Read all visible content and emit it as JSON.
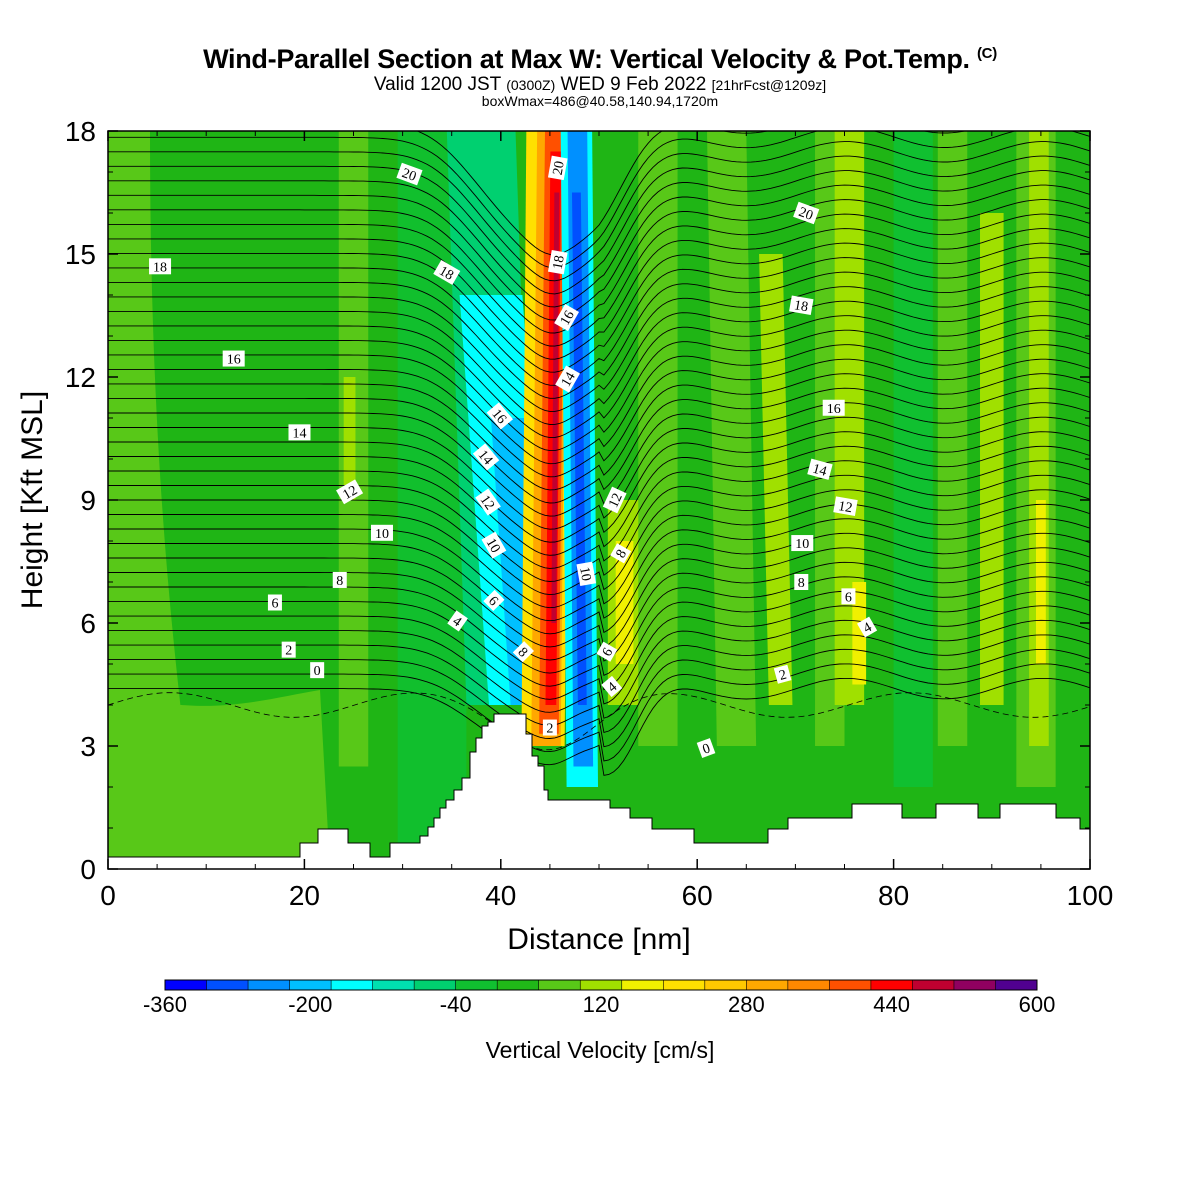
{
  "title": {
    "line1": "Wind-Parallel Section at Max W: Vertical Velocity & Pot.Temp.",
    "copyright": "(C)",
    "line2_a": "Valid 1200 JST",
    "line2_b": "(0300Z)",
    "line2_c": "WED 9 Feb 2022",
    "line2_d": "[21hrFcst@1209z]",
    "line3": "boxWmax=486@40.58,140.94,1720m"
  },
  "chart_data": {
    "type": "heatmap",
    "description_variable": "Vertical Velocity",
    "xlabel": "Distance [nm]",
    "ylabel": "Height [Kft MSL]",
    "xlim": [
      0,
      100
    ],
    "ylim": [
      0,
      18
    ],
    "xticks": [
      0,
      20,
      40,
      60,
      80,
      100
    ],
    "yticks": [
      0,
      3,
      6,
      9,
      12,
      15,
      18
    ],
    "colorbar": {
      "label": "Vertical Velocity [cm/s]",
      "tick_labels": [
        "-360",
        "-200",
        "-40",
        "120",
        "280",
        "440",
        "600"
      ],
      "tick_values": [
        -360,
        -200,
        -40,
        120,
        280,
        440,
        600
      ],
      "colors": [
        "#0000ff",
        "#0050ff",
        "#0090ff",
        "#00c0ff",
        "#00ffff",
        "#00e0b0",
        "#00d070",
        "#10c030",
        "#20b818",
        "#58c818",
        "#a0e000",
        "#f0f000",
        "#ffe000",
        "#ffc800",
        "#ffa800",
        "#ff8800",
        "#ff5000",
        "#ff0000",
        "#c00030",
        "#900060",
        "#500090"
      ]
    },
    "contour_variable": "Pot.Temp.",
    "contour_labels": [
      {
        "text": "18",
        "x": 5.3,
        "y": 14.7,
        "angle": 0
      },
      {
        "text": "16",
        "x": 12.8,
        "y": 12.45,
        "angle": 0
      },
      {
        "text": "14",
        "x": 19.5,
        "y": 10.65,
        "angle": 0
      },
      {
        "text": "12",
        "x": 24.6,
        "y": 9.2,
        "angle": -30
      },
      {
        "text": "10",
        "x": 27.9,
        "y": 8.2,
        "angle": 0
      },
      {
        "text": "8",
        "x": 23.6,
        "y": 7.05,
        "angle": 0
      },
      {
        "text": "6",
        "x": 17.0,
        "y": 6.5,
        "angle": 0
      },
      {
        "text": "2",
        "x": 18.4,
        "y": 5.35,
        "angle": 0
      },
      {
        "text": "0",
        "x": 21.3,
        "y": 4.85,
        "angle": 0
      },
      {
        "text": "20",
        "x": 30.7,
        "y": 16.95,
        "angle": 20
      },
      {
        "text": "18",
        "x": 34.5,
        "y": 14.55,
        "angle": 30
      },
      {
        "text": "16",
        "x": 39.9,
        "y": 11.05,
        "angle": 50
      },
      {
        "text": "14",
        "x": 38.5,
        "y": 10.05,
        "angle": 50
      },
      {
        "text": "12",
        "x": 38.7,
        "y": 8.95,
        "angle": 55
      },
      {
        "text": "10",
        "x": 39.3,
        "y": 7.9,
        "angle": 60
      },
      {
        "text": "6",
        "x": 39.3,
        "y": 6.55,
        "angle": 45
      },
      {
        "text": "4",
        "x": 35.6,
        "y": 6.05,
        "angle": 35
      },
      {
        "text": "8",
        "x": 42.3,
        "y": 5.3,
        "angle": 45
      },
      {
        "text": "2",
        "x": 45.0,
        "y": 3.45,
        "angle": 0
      },
      {
        "text": "20",
        "x": 45.8,
        "y": 17.1,
        "angle": -80
      },
      {
        "text": "18",
        "x": 45.8,
        "y": 14.8,
        "angle": -80
      },
      {
        "text": "16",
        "x": 46.7,
        "y": 13.45,
        "angle": -60
      },
      {
        "text": "14",
        "x": 46.8,
        "y": 11.95,
        "angle": -60
      },
      {
        "text": "12",
        "x": 51.6,
        "y": 9.0,
        "angle": -65
      },
      {
        "text": "10",
        "x": 48.7,
        "y": 7.2,
        "angle": 80
      },
      {
        "text": "8",
        "x": 52.2,
        "y": 7.7,
        "angle": -60
      },
      {
        "text": "6",
        "x": 50.8,
        "y": 5.3,
        "angle": -60
      },
      {
        "text": "4",
        "x": 51.3,
        "y": 4.45,
        "angle": -40
      },
      {
        "text": "0",
        "x": 60.9,
        "y": 2.95,
        "angle": -20
      },
      {
        "text": "20",
        "x": 71.1,
        "y": 16.0,
        "angle": 20
      },
      {
        "text": "18",
        "x": 70.6,
        "y": 13.75,
        "angle": 10
      },
      {
        "text": "16",
        "x": 73.9,
        "y": 11.25,
        "angle": 0
      },
      {
        "text": "14",
        "x": 72.5,
        "y": 9.75,
        "angle": 15
      },
      {
        "text": "12",
        "x": 75.1,
        "y": 8.85,
        "angle": 10
      },
      {
        "text": "10",
        "x": 70.7,
        "y": 7.95,
        "angle": 0
      },
      {
        "text": "8",
        "x": 70.6,
        "y": 7.0,
        "angle": 0
      },
      {
        "text": "6",
        "x": 75.4,
        "y": 6.65,
        "angle": 0
      },
      {
        "text": "4",
        "x": 77.3,
        "y": 5.9,
        "angle": -30
      },
      {
        "text": "2",
        "x": 68.7,
        "y": 4.75,
        "angle": -15
      }
    ]
  }
}
